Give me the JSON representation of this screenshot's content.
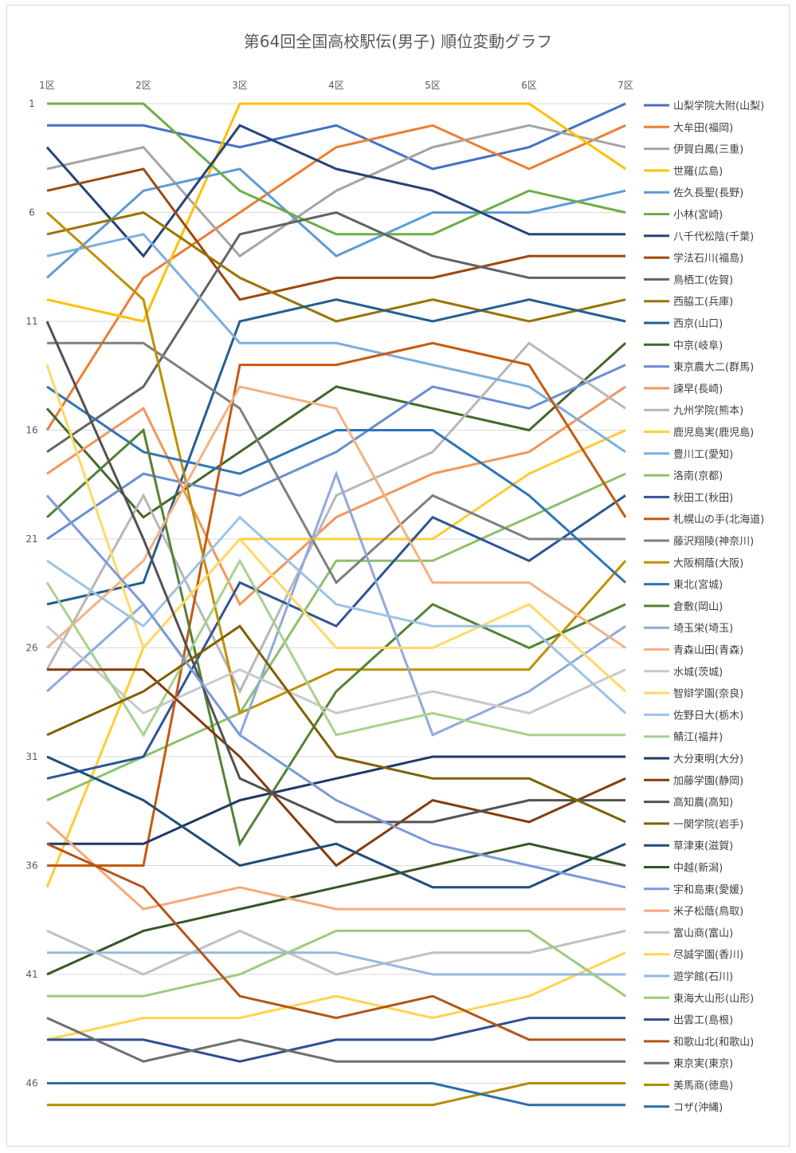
{
  "chart_data": {
    "type": "line",
    "title": "第64回全国高校駅伝(男子) 順位変動グラフ",
    "categories": [
      "1区",
      "2区",
      "3区",
      "4区",
      "5区",
      "6区",
      "7区"
    ],
    "y_ticks": [
      1,
      6,
      11,
      16,
      21,
      26,
      31,
      36,
      41,
      46
    ],
    "ylim": [
      1,
      47
    ],
    "y_reversed": true,
    "grid": true,
    "legend_position": "right",
    "series": [
      {
        "name": "山梨学院大附(山梨)",
        "color": "#4472C4",
        "values": [
          2,
          2,
          3,
          2,
          4,
          3,
          1
        ]
      },
      {
        "name": "大牟田(福岡)",
        "color": "#ED7D31",
        "values": [
          16,
          9,
          6,
          3,
          2,
          4,
          2
        ]
      },
      {
        "name": "伊賀白鳳(三重)",
        "color": "#A5A5A5",
        "values": [
          4,
          3,
          8,
          5,
          3,
          2,
          3
        ]
      },
      {
        "name": "世羅(広島)",
        "color": "#FFC000",
        "values": [
          10,
          11,
          1,
          1,
          1,
          1,
          4
        ]
      },
      {
        "name": "佐久長聖(長野)",
        "color": "#5B9BD5",
        "values": [
          9,
          5,
          4,
          8,
          6,
          6,
          5
        ]
      },
      {
        "name": "小林(宮崎)",
        "color": "#70AD47",
        "values": [
          1,
          1,
          5,
          7,
          7,
          5,
          6
        ]
      },
      {
        "name": "八千代松陰(千葉)",
        "color": "#264478",
        "values": [
          3,
          8,
          2,
          4,
          5,
          7,
          7
        ]
      },
      {
        "name": "学法石川(福島)",
        "color": "#9E480E",
        "values": [
          5,
          4,
          10,
          9,
          9,
          8,
          8
        ]
      },
      {
        "name": "鳥栖工(佐賀)",
        "color": "#636363",
        "values": [
          17,
          14,
          7,
          6,
          8,
          9,
          9
        ]
      },
      {
        "name": "西脇工(兵庫)",
        "color": "#997300",
        "values": [
          7,
          6,
          9,
          11,
          10,
          11,
          10
        ]
      },
      {
        "name": "西京(山口)",
        "color": "#255E91",
        "values": [
          24,
          23,
          11,
          10,
          11,
          10,
          11
        ]
      },
      {
        "name": "中京(岐阜)",
        "color": "#43682B",
        "values": [
          15,
          20,
          17,
          14,
          15,
          16,
          12
        ]
      },
      {
        "name": "東京農大二(群馬)",
        "color": "#698ED0",
        "values": [
          21,
          18,
          19,
          17,
          14,
          15,
          13
        ]
      },
      {
        "name": "諫早(長崎)",
        "color": "#F1975A",
        "values": [
          18,
          15,
          24,
          20,
          18,
          17,
          14
        ]
      },
      {
        "name": "九州学院(熊本)",
        "color": "#B7B7B7",
        "values": [
          27,
          19,
          28,
          19,
          17,
          12,
          15
        ]
      },
      {
        "name": "鹿児島実(鹿児島)",
        "color": "#FFCD33",
        "values": [
          37,
          26,
          21,
          21,
          21,
          18,
          16
        ]
      },
      {
        "name": "豊川工(愛知)",
        "color": "#7CAFDD",
        "values": [
          8,
          7,
          12,
          12,
          13,
          14,
          17
        ]
      },
      {
        "name": "洛南(京都)",
        "color": "#8CC168",
        "values": [
          33,
          31,
          29,
          22,
          22,
          20,
          18
        ]
      },
      {
        "name": "秋田工(秋田)",
        "color": "#2F5597",
        "values": [
          32,
          31,
          23,
          25,
          20,
          22,
          19
        ]
      },
      {
        "name": "札幌山の手(北海道)",
        "color": "#C55A11",
        "values": [
          36,
          36,
          13,
          13,
          12,
          13,
          20
        ]
      },
      {
        "name": "藤沢翔陵(神奈川)",
        "color": "#7F7F7F",
        "values": [
          12,
          12,
          15,
          23,
          19,
          21,
          21
        ]
      },
      {
        "name": "大阪桐蔭(大阪)",
        "color": "#BF9000",
        "values": [
          6,
          10,
          29,
          27,
          27,
          27,
          22
        ]
      },
      {
        "name": "東北(宮城)",
        "color": "#2E75B6",
        "values": [
          14,
          17,
          18,
          16,
          16,
          19,
          23
        ]
      },
      {
        "name": "倉敷(岡山)",
        "color": "#548235",
        "values": [
          20,
          16,
          35,
          28,
          24,
          26,
          24
        ]
      },
      {
        "name": "埼玉栄(埼玉)",
        "color": "#8FAADC",
        "values": [
          28,
          24,
          30,
          18,
          30,
          28,
          25
        ]
      },
      {
        "name": "青森山田(青森)",
        "color": "#F4B183",
        "values": [
          26,
          22,
          14,
          15,
          23,
          23,
          26
        ]
      },
      {
        "name": "水城(茨城)",
        "color": "#C9C9C9",
        "values": [
          25,
          29,
          27,
          29,
          28,
          29,
          27
        ]
      },
      {
        "name": "智辯学園(奈良)",
        "color": "#FFD966",
        "values": [
          13,
          26,
          21,
          26,
          26,
          24,
          28
        ]
      },
      {
        "name": "佐野日大(栃木)",
        "color": "#9DC3E6",
        "values": [
          22,
          25,
          20,
          24,
          25,
          25,
          29
        ]
      },
      {
        "name": "鯖江(福井)",
        "color": "#A9D18E",
        "values": [
          23,
          30,
          22,
          30,
          29,
          30,
          30
        ]
      },
      {
        "name": "大分東明(大分)",
        "color": "#203864",
        "values": [
          35,
          35,
          33,
          32,
          31,
          31,
          31
        ]
      },
      {
        "name": "加藤学園(静岡)",
        "color": "#843C0C",
        "values": [
          27,
          27,
          31,
          36,
          33,
          34,
          32
        ]
      },
      {
        "name": "高知農(高知)",
        "color": "#525252",
        "values": [
          11,
          21,
          32,
          34,
          34,
          33,
          33
        ]
      },
      {
        "name": "一関学院(岩手)",
        "color": "#7F6000",
        "values": [
          30,
          28,
          25,
          31,
          32,
          32,
          34
        ]
      },
      {
        "name": "草津東(滋賀)",
        "color": "#1F4E79",
        "values": [
          31,
          33,
          36,
          35,
          37,
          37,
          35
        ]
      },
      {
        "name": "中越(新潟)",
        "color": "#375623",
        "values": [
          41,
          39,
          38,
          37,
          36,
          35,
          36
        ]
      },
      {
        "name": "宇和島東(愛媛)",
        "color": "#7B9ADB",
        "values": [
          19,
          24,
          30,
          33,
          35,
          36,
          37
        ]
      },
      {
        "name": "米子松蔭(鳥取)",
        "color": "#F4A97B",
        "values": [
          34,
          38,
          37,
          38,
          38,
          38,
          38
        ]
      },
      {
        "name": "富山商(富山)",
        "color": "#C0C0C0",
        "values": [
          39,
          41,
          39,
          41,
          40,
          40,
          39
        ]
      },
      {
        "name": "尽誠学園(香川)",
        "color": "#FFD54F",
        "values": [
          44,
          43,
          43,
          42,
          43,
          42,
          40
        ]
      },
      {
        "name": "遊学館(石川)",
        "color": "#95B9DF",
        "values": [
          40,
          40,
          40,
          40,
          41,
          41,
          41
        ]
      },
      {
        "name": "東海大山形(山形)",
        "color": "#9CCB7A",
        "values": [
          42,
          42,
          41,
          39,
          39,
          39,
          42
        ]
      },
      {
        "name": "出雲工(島根)",
        "color": "#2E4F91",
        "values": [
          44,
          44,
          45,
          44,
          44,
          43,
          43
        ]
      },
      {
        "name": "和歌山北(和歌山)",
        "color": "#B4541A",
        "values": [
          35,
          37,
          42,
          43,
          42,
          44,
          44
        ]
      },
      {
        "name": "東京実(東京)",
        "color": "#6E6E6E",
        "values": [
          43,
          45,
          44,
          45,
          45,
          45,
          45
        ]
      },
      {
        "name": "美馬商(徳島)",
        "color": "#B08D00",
        "values": [
          47,
          47,
          47,
          47,
          47,
          46,
          46
        ]
      },
      {
        "name": "コザ(沖縄)",
        "color": "#2A6EA8",
        "values": [
          46,
          46,
          46,
          46,
          46,
          47,
          47
        ]
      }
    ]
  }
}
